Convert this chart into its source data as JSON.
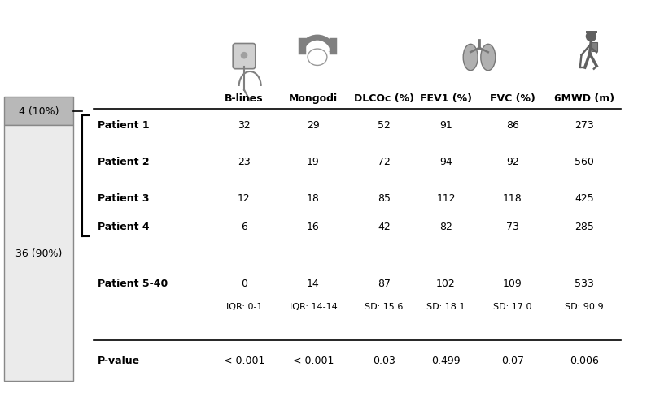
{
  "col_headers": [
    "B-lines",
    "Mongodi",
    "DLCOc (%)",
    "FEV1 (%)",
    "FVC (%)",
    "6MWD (m)"
  ],
  "patient_labels": [
    "Patient 1",
    "Patient 2",
    "Patient 3",
    "Patient 4"
  ],
  "patient_data": [
    [
      32,
      29,
      52,
      91,
      86,
      273
    ],
    [
      23,
      19,
      72,
      94,
      92,
      560
    ],
    [
      12,
      18,
      85,
      112,
      118,
      425
    ],
    [
      6,
      16,
      42,
      82,
      73,
      285
    ]
  ],
  "group2_label": "Patient 5-40",
  "group2_values": [
    "0",
    "14",
    "87",
    "102",
    "109",
    "533"
  ],
  "group2_sub": [
    "IQR: 0-1",
    "IQR: 14-14",
    "SD: 15.6",
    "SD: 18.1",
    "SD: 17.0",
    "SD: 90.9"
  ],
  "pvalue_label": "P-value",
  "pvalues": [
    "< 0.001",
    "< 0.001",
    "0.03",
    "0.499",
    "0.07",
    "0.006"
  ],
  "left_bar_top_label": "4 (10%)",
  "left_bar_bottom_label": "36 (90%)",
  "left_bar_top_color": "#b8b8b8",
  "left_bar_bottom_color": "#ebebeb",
  "background_color": "#ffffff",
  "bar_edge_color": "#888888",
  "icon_color": "#808080",
  "figw": 8.0,
  "figh": 4.85,
  "dpi": 100
}
